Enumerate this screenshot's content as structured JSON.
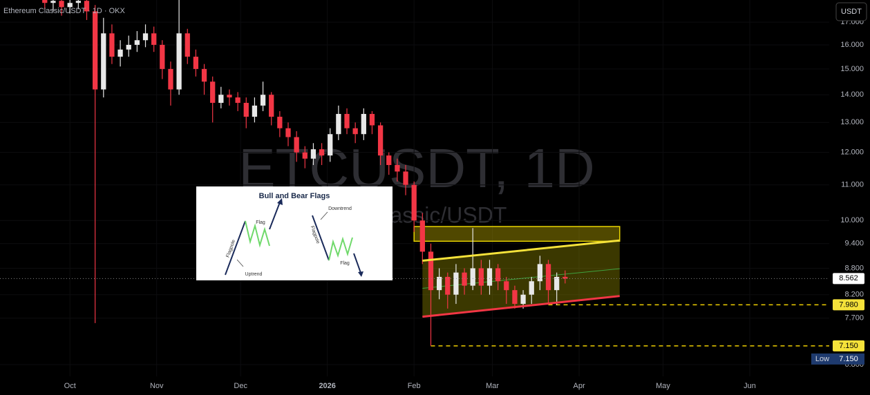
{
  "chart_data": {
    "type": "candlestick",
    "title": "Ethereum Classic/USDT · 1D · OKX",
    "watermark": "ETCUSDT, 1D",
    "watermark_subtitle": "Ethereum Classic/USDT",
    "currency_button": "USDT",
    "log_scale": true,
    "up_color": "#e8e8e8",
    "down_color": "#f23645",
    "x": [
      -9,
      -6,
      -3,
      0,
      3,
      6,
      9,
      12,
      15,
      18,
      21,
      24,
      27,
      30,
      33,
      36,
      39,
      42,
      45,
      48,
      51,
      54,
      57,
      60,
      63,
      66,
      69,
      72,
      75,
      78,
      81,
      84,
      87,
      90,
      93,
      96,
      99,
      102,
      105,
      108,
      111,
      114,
      117,
      120,
      123,
      126,
      129,
      132,
      135,
      138,
      141,
      144,
      147,
      150,
      153,
      156,
      159,
      162,
      165,
      168,
      171,
      174,
      177
    ],
    "open": [
      18.2,
      17.9,
      18.0,
      17.7,
      17.9,
      18.0,
      17.5,
      14.2,
      16.5,
      15.5,
      15.8,
      16.0,
      16.2,
      16.5,
      16.0,
      15.0,
      14.2,
      16.5,
      15.5,
      15.0,
      14.5,
      13.7,
      14.0,
      13.9,
      13.7,
      13.2,
      13.6,
      14.0,
      13.2,
      12.8,
      12.5,
      12.0,
      11.8,
      12.1,
      11.9,
      12.6,
      13.3,
      12.8,
      12.6,
      13.3,
      12.9,
      11.9,
      11.6,
      11.4,
      11.0,
      10.0,
      9.2,
      8.3,
      8.6,
      8.2,
      8.7,
      8.4,
      8.8,
      8.4,
      8.8,
      8.5,
      8.3,
      8.0,
      8.2,
      8.5,
      8.9,
      8.3,
      8.6
    ],
    "high": [
      18.6,
      18.4,
      18.3,
      18.2,
      18.4,
      18.3,
      17.8,
      17.2,
      16.9,
      16.2,
      16.4,
      16.6,
      16.9,
      16.8,
      16.2,
      15.3,
      18.3,
      16.7,
      15.8,
      15.2,
      14.7,
      14.3,
      14.2,
      14.1,
      13.9,
      13.9,
      14.5,
      14.1,
      13.4,
      13.0,
      12.7,
      12.2,
      12.3,
      12.3,
      12.8,
      13.6,
      13.5,
      13.0,
      13.5,
      13.4,
      13.0,
      12.0,
      11.8,
      11.6,
      11.1,
      10.2,
      9.4,
      8.8,
      8.7,
      8.9,
      8.8,
      9.8,
      9.0,
      9.0,
      8.9,
      8.6,
      8.4,
      8.3,
      8.6,
      9.1,
      9.0,
      8.7,
      8.75
    ],
    "low": [
      17.6,
      17.5,
      17.3,
      17.4,
      17.6,
      17.1,
      7.6,
      13.9,
      15.2,
      15.1,
      15.5,
      15.7,
      15.9,
      15.7,
      14.6,
      13.6,
      14.0,
      15.2,
      14.7,
      14.0,
      13.0,
      13.5,
      13.6,
      13.4,
      12.8,
      13.0,
      13.4,
      12.9,
      12.5,
      12.2,
      11.7,
      11.5,
      11.6,
      11.6,
      11.7,
      12.4,
      12.6,
      12.3,
      12.4,
      12.6,
      11.6,
      11.3,
      11.1,
      10.7,
      9.7,
      8.9,
      7.15,
      8.1,
      7.9,
      8.0,
      8.2,
      8.3,
      8.2,
      8.2,
      8.3,
      8.0,
      7.9,
      7.9,
      8.0,
      8.3,
      8.0,
      7.98,
      8.45
    ],
    "close": [
      17.9,
      18.0,
      17.7,
      17.9,
      18.0,
      17.5,
      14.2,
      16.5,
      15.5,
      15.8,
      16.0,
      16.2,
      16.5,
      16.0,
      15.0,
      14.2,
      16.5,
      15.5,
      15.0,
      14.5,
      13.7,
      14.0,
      13.9,
      13.7,
      13.2,
      13.6,
      14.0,
      13.2,
      12.8,
      12.5,
      12.0,
      11.8,
      12.1,
      11.9,
      12.6,
      13.3,
      12.8,
      12.6,
      13.3,
      12.9,
      11.9,
      11.6,
      11.4,
      11.0,
      10.0,
      9.2,
      8.3,
      8.6,
      8.2,
      8.7,
      8.4,
      8.8,
      8.4,
      8.8,
      8.5,
      8.3,
      8.0,
      8.2,
      8.5,
      8.9,
      8.3,
      8.6,
      8.56
    ],
    "xlim": [
      -25,
      271.4
    ],
    "xticks": [
      {
        "value": 0,
        "label": "Oct"
      },
      {
        "value": 31,
        "label": "Nov"
      },
      {
        "value": 61,
        "label": "Dec"
      },
      {
        "value": 92,
        "label": "2026"
      },
      {
        "value": 123,
        "label": "Feb"
      },
      {
        "value": 151,
        "label": "Mar"
      },
      {
        "value": 182,
        "label": "Apr"
      },
      {
        "value": 212,
        "label": "May"
      },
      {
        "value": 243,
        "label": "Jun"
      }
    ],
    "ylim": [
      6.59,
      18.04
    ],
    "yticks": [
      {
        "value": 17,
        "label": "17.000"
      },
      {
        "value": 16,
        "label": "16.000"
      },
      {
        "value": 15,
        "label": "15.000"
      },
      {
        "value": 14,
        "label": "14.000"
      },
      {
        "value": 13,
        "label": "13.000"
      },
      {
        "value": 12,
        "label": "12.000"
      },
      {
        "value": 11,
        "label": "11.000"
      },
      {
        "value": 10,
        "label": "10.000"
      },
      {
        "value": 9.4,
        "label": "9.400"
      },
      {
        "value": 8.8,
        "label": "8.800"
      },
      {
        "value": 8.2,
        "label": "8.200"
      },
      {
        "value": 7.7,
        "label": "7.700"
      },
      {
        "value": 6.8,
        "label": "6.800"
      }
    ],
    "drawings": {
      "zone": {
        "x": [
          123,
          196.5
        ],
        "y": [
          9.46,
          9.84
        ]
      },
      "channel_top": {
        "x": [
          126,
          196.5
        ],
        "y": [
          8.98,
          9.48
        ]
      },
      "channel_bottom": {
        "x": [
          126,
          196.5
        ],
        "y": [
          7.73,
          8.17
        ]
      },
      "channel_mid": {
        "x": [
          126,
          196.5
        ],
        "y": [
          8.34,
          8.79
        ]
      },
      "support_1": {
        "x": [
          171,
          271.4
        ],
        "y": [
          7.98,
          7.98
        ]
      },
      "support_2": {
        "x": [
          129,
          271.4
        ],
        "y": [
          7.15,
          7.15
        ]
      }
    },
    "price_labels": [
      {
        "value": 8.562,
        "label": "8.562",
        "kind": "last"
      },
      {
        "value": 7.98,
        "label": "7.980",
        "kind": "level"
      },
      {
        "value": 7.15,
        "label": "7.150",
        "kind": "level"
      }
    ],
    "low_label": {
      "title": "Low",
      "value": 7.15,
      "label": "7.150"
    },
    "inset": {
      "title": "Bull and Bear Flags",
      "bull_flag": "Flag",
      "bull_pole": "Flagpole",
      "bull_trend": "Uptrend",
      "bear_trend": "Downtrend",
      "bear_pole": "Flagpole",
      "bear_flag": "Flag"
    }
  }
}
